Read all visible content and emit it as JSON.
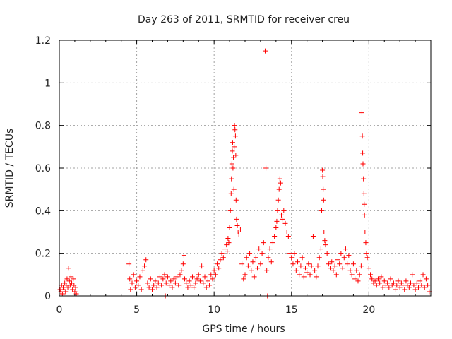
{
  "chart_data": {
    "type": "scatter",
    "title": "Day 263 of 2011, SRMTID for receiver creu",
    "xlabel": "GPS time / hours",
    "ylabel": "SRMTID / TECUs",
    "xlim": [
      0,
      24
    ],
    "ylim": [
      0,
      1.2
    ],
    "x_ticks": [
      0,
      5,
      10,
      15,
      20
    ],
    "x_tick_labels": [
      "0",
      "5",
      "10",
      "15",
      "20"
    ],
    "y_ticks": [
      0,
      0.2,
      0.4,
      0.6,
      0.8,
      1,
      1.2
    ],
    "y_tick_labels": [
      "0",
      "0.2",
      "0.4",
      "0.6",
      "0.8",
      "1",
      "1.2"
    ],
    "grid": true,
    "marker": "plus",
    "marker_color": "#ff0000",
    "series": [
      {
        "points": [
          [
            0.05,
            0.03
          ],
          [
            0.1,
            0.02
          ],
          [
            0.15,
            0.05
          ],
          [
            0.2,
            0.01
          ],
          [
            0.25,
            0.04
          ],
          [
            0.3,
            0.03
          ],
          [
            0.35,
            0.06
          ],
          [
            0.4,
            0.02
          ],
          [
            0.45,
            0.05
          ],
          [
            0.5,
            0.08
          ],
          [
            0.55,
            0.04
          ],
          [
            0.6,
            0.13
          ],
          [
            0.65,
            0.07
          ],
          [
            0.7,
            0.05
          ],
          [
            0.75,
            0.09
          ],
          [
            0.8,
            0.06
          ],
          [
            0.85,
            0.03
          ],
          [
            0.9,
            0.08
          ],
          [
            0.95,
            0.05
          ],
          [
            1.0,
            0.02
          ],
          [
            1.05,
            0.04
          ],
          [
            1.1,
            0.01
          ],
          [
            4.5,
            0.15
          ],
          [
            4.55,
            0.08
          ],
          [
            4.6,
            0.03
          ],
          [
            4.7,
            0.06
          ],
          [
            4.8,
            0.1
          ],
          [
            4.9,
            0.04
          ],
          [
            5.0,
            0.07
          ],
          [
            5.1,
            0.05
          ],
          [
            5.2,
            0.09
          ],
          [
            5.3,
            0.03
          ],
          [
            5.4,
            0.12
          ],
          [
            5.5,
            0.14
          ],
          [
            5.6,
            0.17
          ],
          [
            5.7,
            0.06
          ],
          [
            5.8,
            0.04
          ],
          [
            5.9,
            0.08
          ],
          [
            6.0,
            0.03
          ],
          [
            6.1,
            0.05
          ],
          [
            6.2,
            0.07
          ],
          [
            6.3,
            0.04
          ],
          [
            6.4,
            0.06
          ],
          [
            6.5,
            0.09
          ],
          [
            6.6,
            0.05
          ],
          [
            6.7,
            0.08
          ],
          [
            6.8,
            0.1
          ],
          [
            6.85,
            0.0
          ],
          [
            6.9,
            0.06
          ],
          [
            7.0,
            0.09
          ],
          [
            7.1,
            0.05
          ],
          [
            7.2,
            0.07
          ],
          [
            7.3,
            0.04
          ],
          [
            7.4,
            0.08
          ],
          [
            7.5,
            0.06
          ],
          [
            7.6,
            0.09
          ],
          [
            7.7,
            0.05
          ],
          [
            7.8,
            0.1
          ],
          [
            7.9,
            0.12
          ],
          [
            8.0,
            0.15
          ],
          [
            8.05,
            0.19
          ],
          [
            8.1,
            0.08
          ],
          [
            8.2,
            0.06
          ],
          [
            8.3,
            0.04
          ],
          [
            8.4,
            0.07
          ],
          [
            8.5,
            0.05
          ],
          [
            8.6,
            0.09
          ],
          [
            8.7,
            0.04
          ],
          [
            8.8,
            0.06
          ],
          [
            8.9,
            0.08
          ],
          [
            9.0,
            0.1
          ],
          [
            9.1,
            0.07
          ],
          [
            9.2,
            0.14
          ],
          [
            9.3,
            0.06
          ],
          [
            9.4,
            0.09
          ],
          [
            9.5,
            0.04
          ],
          [
            9.6,
            0.07
          ],
          [
            9.7,
            0.05
          ],
          [
            9.8,
            0.1
          ],
          [
            9.9,
            0.08
          ],
          [
            10.0,
            0.12
          ],
          [
            10.1,
            0.1
          ],
          [
            10.2,
            0.15
          ],
          [
            10.3,
            0.13
          ],
          [
            10.4,
            0.17
          ],
          [
            10.5,
            0.2
          ],
          [
            10.6,
            0.18
          ],
          [
            10.7,
            0.22
          ],
          [
            10.8,
            0.24
          ],
          [
            10.85,
            0.21
          ],
          [
            10.9,
            0.27
          ],
          [
            10.95,
            0.25
          ],
          [
            11.0,
            0.32
          ],
          [
            11.05,
            0.4
          ],
          [
            11.1,
            0.48
          ],
          [
            11.12,
            0.55
          ],
          [
            11.15,
            0.62
          ],
          [
            11.18,
            0.68
          ],
          [
            11.2,
            0.72
          ],
          [
            11.22,
            0.6
          ],
          [
            11.25,
            0.65
          ],
          [
            11.28,
            0.5
          ],
          [
            11.3,
            0.7
          ],
          [
            11.32,
            0.8
          ],
          [
            11.35,
            0.78
          ],
          [
            11.38,
            0.75
          ],
          [
            11.4,
            0.66
          ],
          [
            11.42,
            0.45
          ],
          [
            11.45,
            0.36
          ],
          [
            11.5,
            0.33
          ],
          [
            11.55,
            0.3
          ],
          [
            11.6,
            0.29
          ],
          [
            11.7,
            0.31
          ],
          [
            11.8,
            0.15
          ],
          [
            11.9,
            0.08
          ],
          [
            12.0,
            0.1
          ],
          [
            12.1,
            0.18
          ],
          [
            12.2,
            0.14
          ],
          [
            12.3,
            0.2
          ],
          [
            12.4,
            0.12
          ],
          [
            12.5,
            0.16
          ],
          [
            12.6,
            0.09
          ],
          [
            12.7,
            0.18
          ],
          [
            12.8,
            0.13
          ],
          [
            12.9,
            0.22
          ],
          [
            13.0,
            0.15
          ],
          [
            13.1,
            0.2
          ],
          [
            13.2,
            0.25
          ],
          [
            13.3,
            1.15
          ],
          [
            13.35,
            0.6
          ],
          [
            13.4,
            0.12
          ],
          [
            13.45,
            0.0
          ],
          [
            13.5,
            0.18
          ],
          [
            13.6,
            0.22
          ],
          [
            13.7,
            0.16
          ],
          [
            13.8,
            0.25
          ],
          [
            13.9,
            0.28
          ],
          [
            14.0,
            0.32
          ],
          [
            14.05,
            0.35
          ],
          [
            14.1,
            0.4
          ],
          [
            14.15,
            0.45
          ],
          [
            14.2,
            0.5
          ],
          [
            14.25,
            0.55
          ],
          [
            14.3,
            0.53
          ],
          [
            14.35,
            0.38
          ],
          [
            14.4,
            0.36
          ],
          [
            14.5,
            0.4
          ],
          [
            14.6,
            0.34
          ],
          [
            14.7,
            0.3
          ],
          [
            14.8,
            0.28
          ],
          [
            14.9,
            0.2
          ],
          [
            15.0,
            0.18
          ],
          [
            15.1,
            0.15
          ],
          [
            15.2,
            0.2
          ],
          [
            15.3,
            0.12
          ],
          [
            15.4,
            0.16
          ],
          [
            15.5,
            0.1
          ],
          [
            15.6,
            0.14
          ],
          [
            15.7,
            0.18
          ],
          [
            15.8,
            0.09
          ],
          [
            15.9,
            0.13
          ],
          [
            16.0,
            0.11
          ],
          [
            16.1,
            0.15
          ],
          [
            16.2,
            0.1
          ],
          [
            16.3,
            0.14
          ],
          [
            16.4,
            0.28
          ],
          [
            16.5,
            0.12
          ],
          [
            16.6,
            0.09
          ],
          [
            16.7,
            0.14
          ],
          [
            16.8,
            0.18
          ],
          [
            16.9,
            0.22
          ],
          [
            16.95,
            0.4
          ],
          [
            17.0,
            0.59
          ],
          [
            17.02,
            0.56
          ],
          [
            17.05,
            0.5
          ],
          [
            17.08,
            0.45
          ],
          [
            17.1,
            0.3
          ],
          [
            17.15,
            0.26
          ],
          [
            17.2,
            0.24
          ],
          [
            17.3,
            0.2
          ],
          [
            17.4,
            0.15
          ],
          [
            17.5,
            0.13
          ],
          [
            17.6,
            0.16
          ],
          [
            17.7,
            0.12
          ],
          [
            17.8,
            0.14
          ],
          [
            17.9,
            0.1
          ],
          [
            18.0,
            0.17
          ],
          [
            18.1,
            0.15
          ],
          [
            18.2,
            0.2
          ],
          [
            18.3,
            0.13
          ],
          [
            18.4,
            0.18
          ],
          [
            18.5,
            0.22
          ],
          [
            18.6,
            0.15
          ],
          [
            18.7,
            0.19
          ],
          [
            18.8,
            0.12
          ],
          [
            18.9,
            0.1
          ],
          [
            19.0,
            0.15
          ],
          [
            19.1,
            0.08
          ],
          [
            19.2,
            0.12
          ],
          [
            19.3,
            0.07
          ],
          [
            19.4,
            0.1
          ],
          [
            19.5,
            0.14
          ],
          [
            19.55,
            0.86
          ],
          [
            19.58,
            0.75
          ],
          [
            19.6,
            0.67
          ],
          [
            19.62,
            0.62
          ],
          [
            19.65,
            0.55
          ],
          [
            19.68,
            0.48
          ],
          [
            19.7,
            0.43
          ],
          [
            19.72,
            0.38
          ],
          [
            19.75,
            0.3
          ],
          [
            19.8,
            0.25
          ],
          [
            19.85,
            0.2
          ],
          [
            19.9,
            0.18
          ],
          [
            20.0,
            0.13
          ],
          [
            20.1,
            0.1
          ],
          [
            20.2,
            0.08
          ],
          [
            20.3,
            0.06
          ],
          [
            20.4,
            0.07
          ],
          [
            20.5,
            0.05
          ],
          [
            20.6,
            0.08
          ],
          [
            20.7,
            0.06
          ],
          [
            20.8,
            0.09
          ],
          [
            20.9,
            0.04
          ],
          [
            21.0,
            0.07
          ],
          [
            21.1,
            0.05
          ],
          [
            21.2,
            0.06
          ],
          [
            21.3,
            0.04
          ],
          [
            21.4,
            0.08
          ],
          [
            21.5,
            0.05
          ],
          [
            21.6,
            0.06
          ],
          [
            21.7,
            0.03
          ],
          [
            21.8,
            0.05
          ],
          [
            21.9,
            0.07
          ],
          [
            22.0,
            0.04
          ],
          [
            22.1,
            0.06
          ],
          [
            22.2,
            0.05
          ],
          [
            22.3,
            0.03
          ],
          [
            22.4,
            0.07
          ],
          [
            22.5,
            0.05
          ],
          [
            22.6,
            0.04
          ],
          [
            22.7,
            0.06
          ],
          [
            22.8,
            0.1
          ],
          [
            22.9,
            0.05
          ],
          [
            23.0,
            0.03
          ],
          [
            23.1,
            0.06
          ],
          [
            23.2,
            0.04
          ],
          [
            23.3,
            0.07
          ],
          [
            23.4,
            0.05
          ],
          [
            23.5,
            0.1
          ],
          [
            23.6,
            0.04
          ],
          [
            23.7,
            0.08
          ],
          [
            23.8,
            0.05
          ],
          [
            23.9,
            0.02
          ]
        ]
      }
    ]
  }
}
